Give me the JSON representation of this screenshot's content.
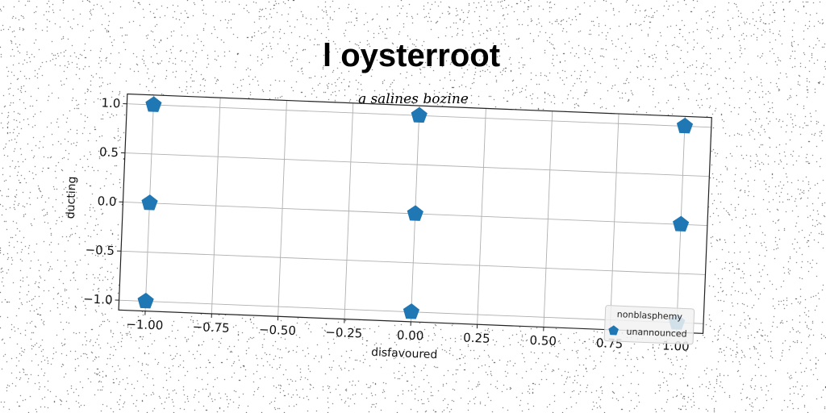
{
  "chart_data": {
    "type": "scatter",
    "title": "l oysterroot",
    "subtitle": "q salines bozine",
    "xlabel": "disfavoured",
    "ylabel": "ducting",
    "xlim": [
      -1.1,
      1.1
    ],
    "ylim": [
      -1.1,
      1.1
    ],
    "x_ticks": [
      -1.0,
      -0.75,
      -0.5,
      -0.25,
      0.0,
      0.25,
      0.5,
      0.75,
      1.0
    ],
    "x_tick_labels": [
      "−1.00",
      "−0.75",
      "−0.50",
      "−0.25",
      "0.00",
      "0.25",
      "0.50",
      "0.75",
      "1.00"
    ],
    "y_ticks": [
      -1.0,
      -0.5,
      0.0,
      0.5,
      1.0
    ],
    "y_tick_labels": [
      "−1.0",
      "−0.5",
      "0.0",
      "0.5",
      "1.0"
    ],
    "grid": true,
    "legend": {
      "title": "nonblasphemy",
      "placement": "lower right"
    },
    "series": [
      {
        "name": "unannounced",
        "marker": "pentagon",
        "color": "#1f77b4",
        "points": [
          {
            "x": -1.0,
            "y": 1.0
          },
          {
            "x": 0.0,
            "y": 1.0
          },
          {
            "x": 1.0,
            "y": 1.0
          },
          {
            "x": -1.0,
            "y": 0.0
          },
          {
            "x": 0.0,
            "y": 0.0
          },
          {
            "x": 1.0,
            "y": 0.0
          },
          {
            "x": -1.0,
            "y": -1.0
          },
          {
            "x": 0.0,
            "y": -1.0
          },
          {
            "x": 1.0,
            "y": -1.0
          }
        ]
      }
    ]
  }
}
